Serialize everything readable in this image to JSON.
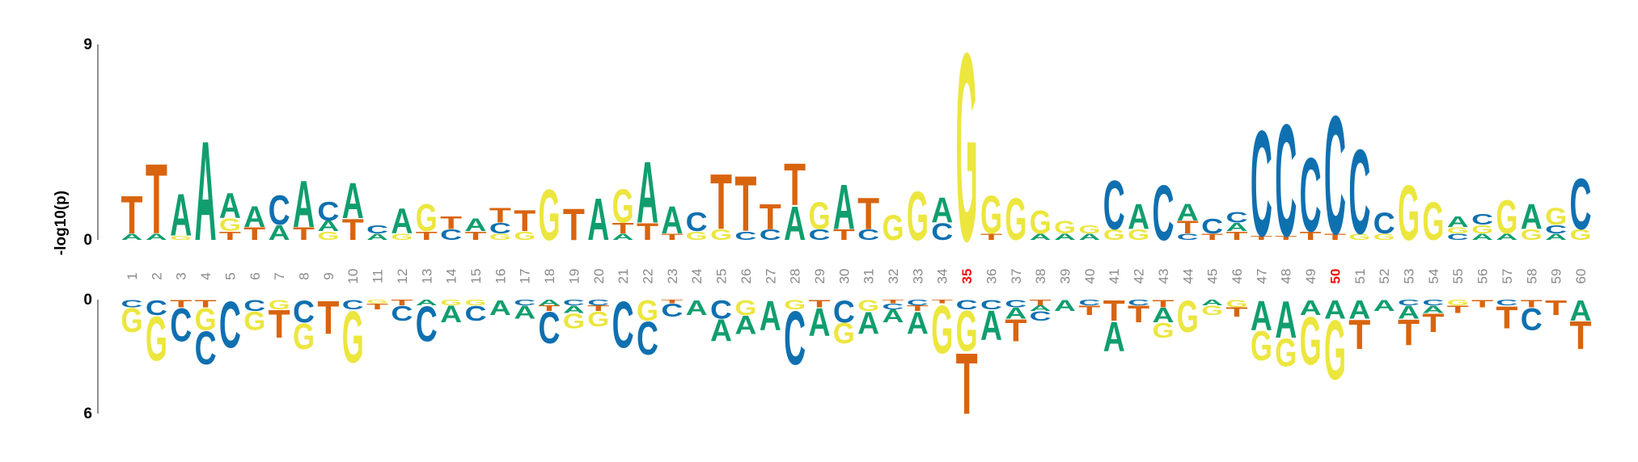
{
  "chart_data": {
    "type": "logo",
    "ylabel": "-log10(p)",
    "categories": [
      "1",
      "2",
      "3",
      "4",
      "5",
      "6",
      "7",
      "8",
      "9",
      "10",
      "11",
      "12",
      "13",
      "14",
      "15",
      "16",
      "17",
      "18",
      "19",
      "20",
      "21",
      "22",
      "23",
      "24",
      "25",
      "26",
      "27",
      "28",
      "29",
      "30",
      "31",
      "32",
      "33",
      "34",
      "35",
      "36",
      "37",
      "38",
      "39",
      "40",
      "41",
      "42",
      "43",
      "44",
      "45",
      "46",
      "47",
      "48",
      "49",
      "50",
      "51",
      "52",
      "53",
      "54",
      "55",
      "56",
      "57",
      "58",
      "59",
      "60"
    ],
    "highlight": [
      35,
      50
    ],
    "highlight_color": "#e8140f",
    "category_color": "#8a8a8a",
    "colors": {
      "A": "#109e6e",
      "C": "#0f70b0",
      "G": "#ece63f",
      "T": "#d9640e"
    },
    "ylim": [
      0,
      9
    ],
    "yticks": [
      0,
      9
    ],
    "y2lim": [
      0,
      6
    ],
    "y2ticks": [
      0,
      6
    ],
    "top": [
      [
        [
          "A",
          0.3
        ],
        [
          "T",
          1.8
        ]
      ],
      [
        [
          "A",
          0.3
        ],
        [
          "T",
          3.3
        ]
      ],
      [
        [
          "G",
          0.2
        ],
        [
          "A",
          2.0
        ]
      ],
      [
        [
          "A",
          4.7
        ]
      ],
      [
        [
          "T",
          0.4
        ],
        [
          "G",
          0.6
        ],
        [
          "A",
          1.2
        ]
      ],
      [
        [
          "T",
          0.6
        ],
        [
          "A",
          1.0
        ]
      ],
      [
        [
          "A",
          0.7
        ],
        [
          "C",
          1.4
        ]
      ],
      [
        [
          "T",
          0.6
        ],
        [
          "A",
          2.2
        ]
      ],
      [
        [
          "G",
          0.4
        ],
        [
          "A",
          0.5
        ],
        [
          "C",
          0.9
        ]
      ],
      [
        [
          "T",
          1.0
        ],
        [
          "A",
          1.7
        ]
      ],
      [
        [
          "A",
          0.3
        ],
        [
          "C",
          0.4
        ]
      ],
      [
        [
          "G",
          0.3
        ],
        [
          "A",
          1.2
        ]
      ],
      [
        [
          "T",
          0.4
        ],
        [
          "G",
          1.3
        ]
      ],
      [
        [
          "C",
          0.5
        ],
        [
          "T",
          0.6
        ]
      ],
      [
        [
          "T",
          0.4
        ],
        [
          "A",
          0.6
        ]
      ],
      [
        [
          "G",
          0.3
        ],
        [
          "C",
          0.5
        ],
        [
          "T",
          0.7
        ]
      ],
      [
        [
          "G",
          0.4
        ],
        [
          "T",
          1.0
        ]
      ],
      [
        [
          "G",
          2.4
        ]
      ],
      [
        [
          "T",
          1.5
        ]
      ],
      [
        [
          "A",
          2.0
        ]
      ],
      [
        [
          "A",
          0.3
        ],
        [
          "T",
          0.5
        ],
        [
          "G",
          1.6
        ]
      ],
      [
        [
          "T",
          0.8
        ],
        [
          "A",
          2.9
        ]
      ],
      [
        [
          "T",
          0.3
        ],
        [
          "A",
          1.3
        ]
      ],
      [
        [
          "G",
          0.4
        ],
        [
          "C",
          0.9
        ]
      ],
      [
        [
          "G",
          0.5
        ],
        [
          "T",
          2.6
        ]
      ],
      [
        [
          "C",
          0.4
        ],
        [
          "T",
          2.6
        ]
      ],
      [
        [
          "C",
          0.5
        ],
        [
          "T",
          1.2
        ]
      ],
      [
        [
          "A",
          1.6
        ],
        [
          "T",
          2.0
        ]
      ],
      [
        [
          "C",
          0.5
        ],
        [
          "G",
          1.3
        ]
      ],
      [
        [
          "T",
          0.5
        ],
        [
          "A",
          2.1
        ]
      ],
      [
        [
          "C",
          0.5
        ],
        [
          "T",
          1.5
        ]
      ],
      [
        [
          "G",
          1.2
        ]
      ],
      [
        [
          "G",
          2.3
        ]
      ],
      [
        [
          "C",
          0.8
        ],
        [
          "A",
          1.2
        ]
      ],
      [
        [
          "G",
          8.9
        ]
      ],
      [
        [
          "T",
          0.3
        ],
        [
          "G",
          1.8
        ]
      ],
      [
        [
          "G",
          2.0
        ]
      ],
      [
        [
          "A",
          0.3
        ],
        [
          "G",
          1.1
        ]
      ],
      [
        [
          "A",
          0.3
        ],
        [
          "G",
          0.6
        ]
      ],
      [
        [
          "A",
          0.3
        ],
        [
          "G",
          0.4
        ]
      ],
      [
        [
          "G",
          0.5
        ],
        [
          "C",
          2.3
        ]
      ],
      [
        [
          "G",
          0.5
        ],
        [
          "A",
          1.2
        ]
      ],
      [
        [
          "C",
          2.6
        ]
      ],
      [
        [
          "C",
          0.3
        ],
        [
          "T",
          0.6
        ],
        [
          "A",
          0.8
        ]
      ],
      [
        [
          "T",
          0.3
        ],
        [
          "C",
          0.7
        ]
      ],
      [
        [
          "T",
          0.4
        ],
        [
          "A",
          0.4
        ],
        [
          "C",
          0.5
        ]
      ],
      [
        [
          "T",
          0.2
        ],
        [
          "C",
          5.0
        ]
      ],
      [
        [
          "T",
          0.2
        ],
        [
          "C",
          5.3
        ]
      ],
      [
        [
          "T",
          0.4
        ],
        [
          "C",
          3.5
        ]
      ],
      [
        [
          "T",
          0.3
        ],
        [
          "C",
          5.6
        ]
      ],
      [
        [
          "G",
          0.3
        ],
        [
          "C",
          4.0
        ]
      ],
      [
        [
          "G",
          0.3
        ],
        [
          "C",
          1.0
        ]
      ],
      [
        [
          "G",
          2.6
        ]
      ],
      [
        [
          "G",
          1.8
        ]
      ],
      [
        [
          "C",
          0.3
        ],
        [
          "G",
          0.3
        ],
        [
          "A",
          0.5
        ]
      ],
      [
        [
          "A",
          0.3
        ],
        [
          "G",
          0.4
        ],
        [
          "C",
          0.5
        ]
      ],
      [
        [
          "A",
          0.3
        ],
        [
          "G",
          1.6
        ]
      ],
      [
        [
          "G",
          0.5
        ],
        [
          "A",
          1.2
        ]
      ],
      [
        [
          "A",
          0.3
        ],
        [
          "C",
          0.4
        ],
        [
          "G",
          0.8
        ]
      ],
      [
        [
          "G",
          0.5
        ],
        [
          "C",
          2.4
        ]
      ]
    ],
    "bottom": [
      [
        [
          "C",
          0.4
        ],
        [
          "G",
          1.3
        ]
      ],
      [
        [
          "C",
          0.8
        ],
        [
          "G",
          2.4
        ]
      ],
      [
        [
          "T",
          0.4
        ],
        [
          "C",
          1.8
        ]
      ],
      [
        [
          "T",
          0.4
        ],
        [
          "G",
          1.2
        ],
        [
          "C",
          1.8
        ]
      ],
      [
        [
          "C",
          2.5
        ]
      ],
      [
        [
          "C",
          0.6
        ],
        [
          "G",
          1.0
        ]
      ],
      [
        [
          "G",
          0.5
        ],
        [
          "T",
          1.5
        ]
      ],
      [
        [
          "C",
          1.2
        ],
        [
          "G",
          1.4
        ]
      ],
      [
        [
          "T",
          1.8
        ]
      ],
      [
        [
          "C",
          0.5
        ],
        [
          "G",
          2.8
        ]
      ],
      [
        [
          "G",
          0.2
        ],
        [
          "T",
          0.3
        ]
      ],
      [
        [
          "T",
          0.3
        ],
        [
          "C",
          0.8
        ]
      ],
      [
        [
          "A",
          0.3
        ],
        [
          "C",
          1.9
        ]
      ],
      [
        [
          "G",
          0.3
        ],
        [
          "A",
          0.9
        ]
      ],
      [
        [
          "G",
          0.3
        ],
        [
          "C",
          0.8
        ]
      ],
      [
        [
          "A",
          0.8
        ]
      ],
      [
        [
          "C",
          0.3
        ],
        [
          "A",
          0.7
        ]
      ],
      [
        [
          "A",
          0.3
        ],
        [
          "T",
          0.3
        ],
        [
          "C",
          1.7
        ]
      ],
      [
        [
          "C",
          0.3
        ],
        [
          "A",
          0.4
        ],
        [
          "G",
          0.8
        ]
      ],
      [
        [
          "C",
          0.3
        ],
        [
          "T",
          0.3
        ],
        [
          "G",
          0.8
        ]
      ],
      [
        [
          "C",
          2.5
        ]
      ],
      [
        [
          "G",
          1.1
        ],
        [
          "C",
          1.8
        ]
      ],
      [
        [
          "T",
          0.2
        ],
        [
          "C",
          0.7
        ]
      ],
      [
        [
          "A",
          0.8
        ]
      ],
      [
        [
          "C",
          1.0
        ],
        [
          "A",
          1.2
        ]
      ],
      [
        [
          "G",
          0.8
        ],
        [
          "A",
          1.0
        ]
      ],
      [
        [
          "A",
          1.6
        ]
      ],
      [
        [
          "G",
          0.5
        ],
        [
          "C",
          2.9
        ]
      ],
      [
        [
          "T",
          0.4
        ],
        [
          "A",
          1.5
        ]
      ],
      [
        [
          "C",
          1.2
        ],
        [
          "G",
          1.1
        ]
      ],
      [
        [
          "G",
          0.6
        ],
        [
          "A",
          1.2
        ]
      ],
      [
        [
          "T",
          0.2
        ],
        [
          "C",
          0.3
        ],
        [
          "A",
          0.7
        ]
      ],
      [
        [
          "C",
          0.3
        ],
        [
          "T",
          0.3
        ],
        [
          "A",
          1.2
        ]
      ],
      [
        [
          "T",
          0.2
        ],
        [
          "G",
          2.6
        ]
      ],
      [
        [
          "C",
          0.5
        ],
        [
          "G",
          2.2
        ],
        [
          "T",
          3.3
        ]
      ],
      [
        [
          "C",
          0.5
        ],
        [
          "A",
          1.6
        ]
      ],
      [
        [
          "C",
          0.4
        ],
        [
          "A",
          0.6
        ],
        [
          "T",
          1.2
        ]
      ],
      [
        [
          "T",
          0.3
        ],
        [
          "A",
          0.3
        ],
        [
          "C",
          0.5
        ]
      ],
      [
        [
          "A",
          0.6
        ]
      ],
      [
        [
          "C",
          0.3
        ],
        [
          "T",
          0.5
        ]
      ],
      [
        [
          "T",
          1.1
        ],
        [
          "A",
          1.6
        ]
      ],
      [
        [
          "C",
          0.3
        ],
        [
          "T",
          0.9
        ]
      ],
      [
        [
          "T",
          0.4
        ],
        [
          "A",
          0.8
        ],
        [
          "G",
          0.8
        ]
      ],
      [
        [
          "G",
          1.7
        ]
      ],
      [
        [
          "A",
          0.3
        ],
        [
          "G",
          0.5
        ]
      ],
      [
        [
          "G",
          0.4
        ],
        [
          "T",
          0.5
        ]
      ],
      [
        [
          "A",
          1.6
        ],
        [
          "G",
          1.6
        ]
      ],
      [
        [
          "A",
          2.0
        ],
        [
          "G",
          1.5
        ]
      ],
      [
        [
          "A",
          0.8
        ],
        [
          "G",
          2.6
        ]
      ],
      [
        [
          "A",
          1.0
        ],
        [
          "G",
          3.2
        ]
      ],
      [
        [
          "A",
          1.0
        ],
        [
          "T",
          1.6
        ]
      ],
      [
        [
          "A",
          0.6
        ]
      ],
      [
        [
          "C",
          0.3
        ],
        [
          "A",
          0.7
        ],
        [
          "T",
          1.4
        ]
      ],
      [
        [
          "C",
          0.3
        ],
        [
          "A",
          0.4
        ],
        [
          "T",
          1.0
        ]
      ],
      [
        [
          "G",
          0.3
        ],
        [
          "T",
          0.4
        ]
      ],
      [
        [
          "T",
          0.4
        ]
      ],
      [
        [
          "C",
          0.3
        ],
        [
          "T",
          1.2
        ]
      ],
      [
        [
          "T",
          0.4
        ],
        [
          "C",
          1.2
        ]
      ],
      [
        [
          "T",
          0.8
        ]
      ],
      [
        [
          "A",
          1.1
        ],
        [
          "T",
          1.5
        ]
      ]
    ]
  }
}
